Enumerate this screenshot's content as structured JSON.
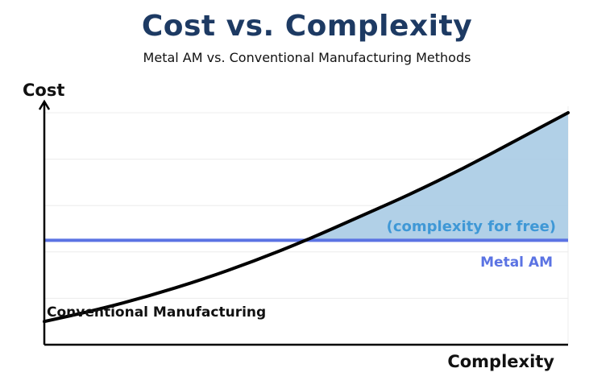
{
  "title": "Cost vs. Complexity",
  "subtitle": "Metal AM vs. Conventional Manufacturing Methods",
  "chart_data": {
    "type": "line",
    "xlabel": "Complexity",
    "ylabel": "Cost",
    "grid": "horizontal",
    "series": [
      {
        "name": "Conventional Manufacturing",
        "color": "#000000",
        "x": [
          0,
          0.1,
          0.2,
          0.3,
          0.4,
          0.5,
          0.6,
          0.7,
          0.8,
          0.9,
          1.0
        ],
        "y": [
          0.1,
          0.15,
          0.21,
          0.28,
          0.36,
          0.45,
          0.55,
          0.65,
          0.76,
          0.88,
          1.0
        ]
      },
      {
        "name": "Metal AM",
        "color": "#5b73e3",
        "x": [
          0,
          1.0
        ],
        "y": [
          0.45,
          0.45
        ]
      }
    ],
    "annotations": [
      {
        "text": "(complexity for free)",
        "color": "#3f98d6"
      }
    ],
    "shaded_region_color": "#a9cbe4"
  }
}
